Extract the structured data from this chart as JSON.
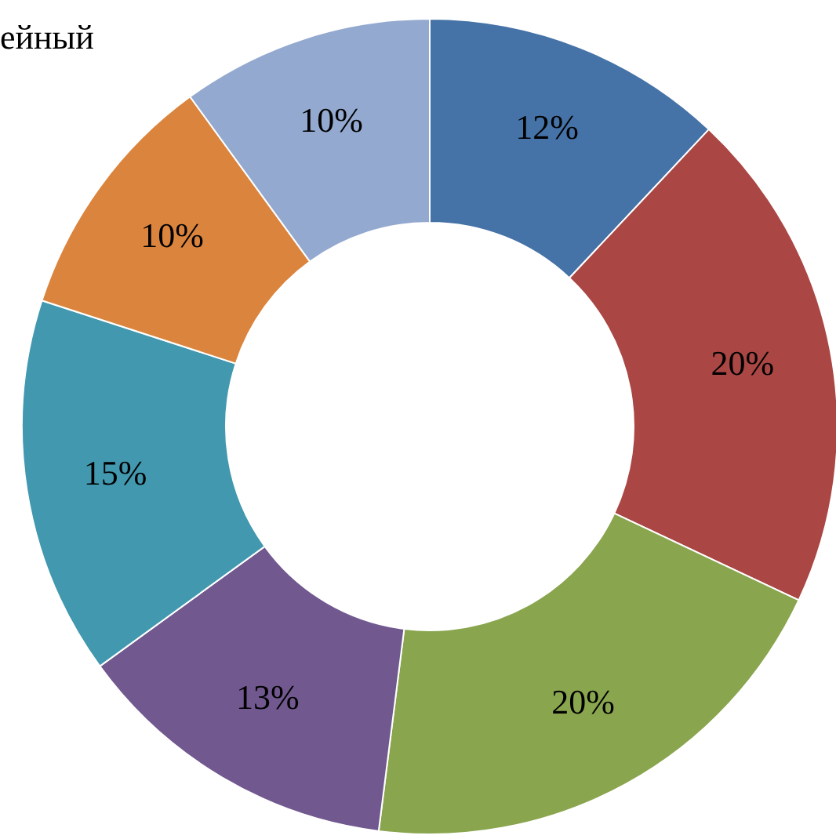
{
  "chart_data": {
    "type": "donut",
    "categories": [
      null,
      null,
      null,
      null,
      null,
      null,
      null
    ],
    "values": [
      12,
      20,
      20,
      13,
      15,
      10,
      10
    ],
    "value_labels": [
      "12%",
      "20%",
      "20%",
      "13%",
      "15%",
      "10%",
      "10%"
    ],
    "colors": [
      "#4572a7",
      "#aa4643",
      "#89a54e",
      "#71588f",
      "#4198af",
      "#db843d",
      "#93a9cf"
    ],
    "annotations": [
      "ейный"
    ]
  }
}
